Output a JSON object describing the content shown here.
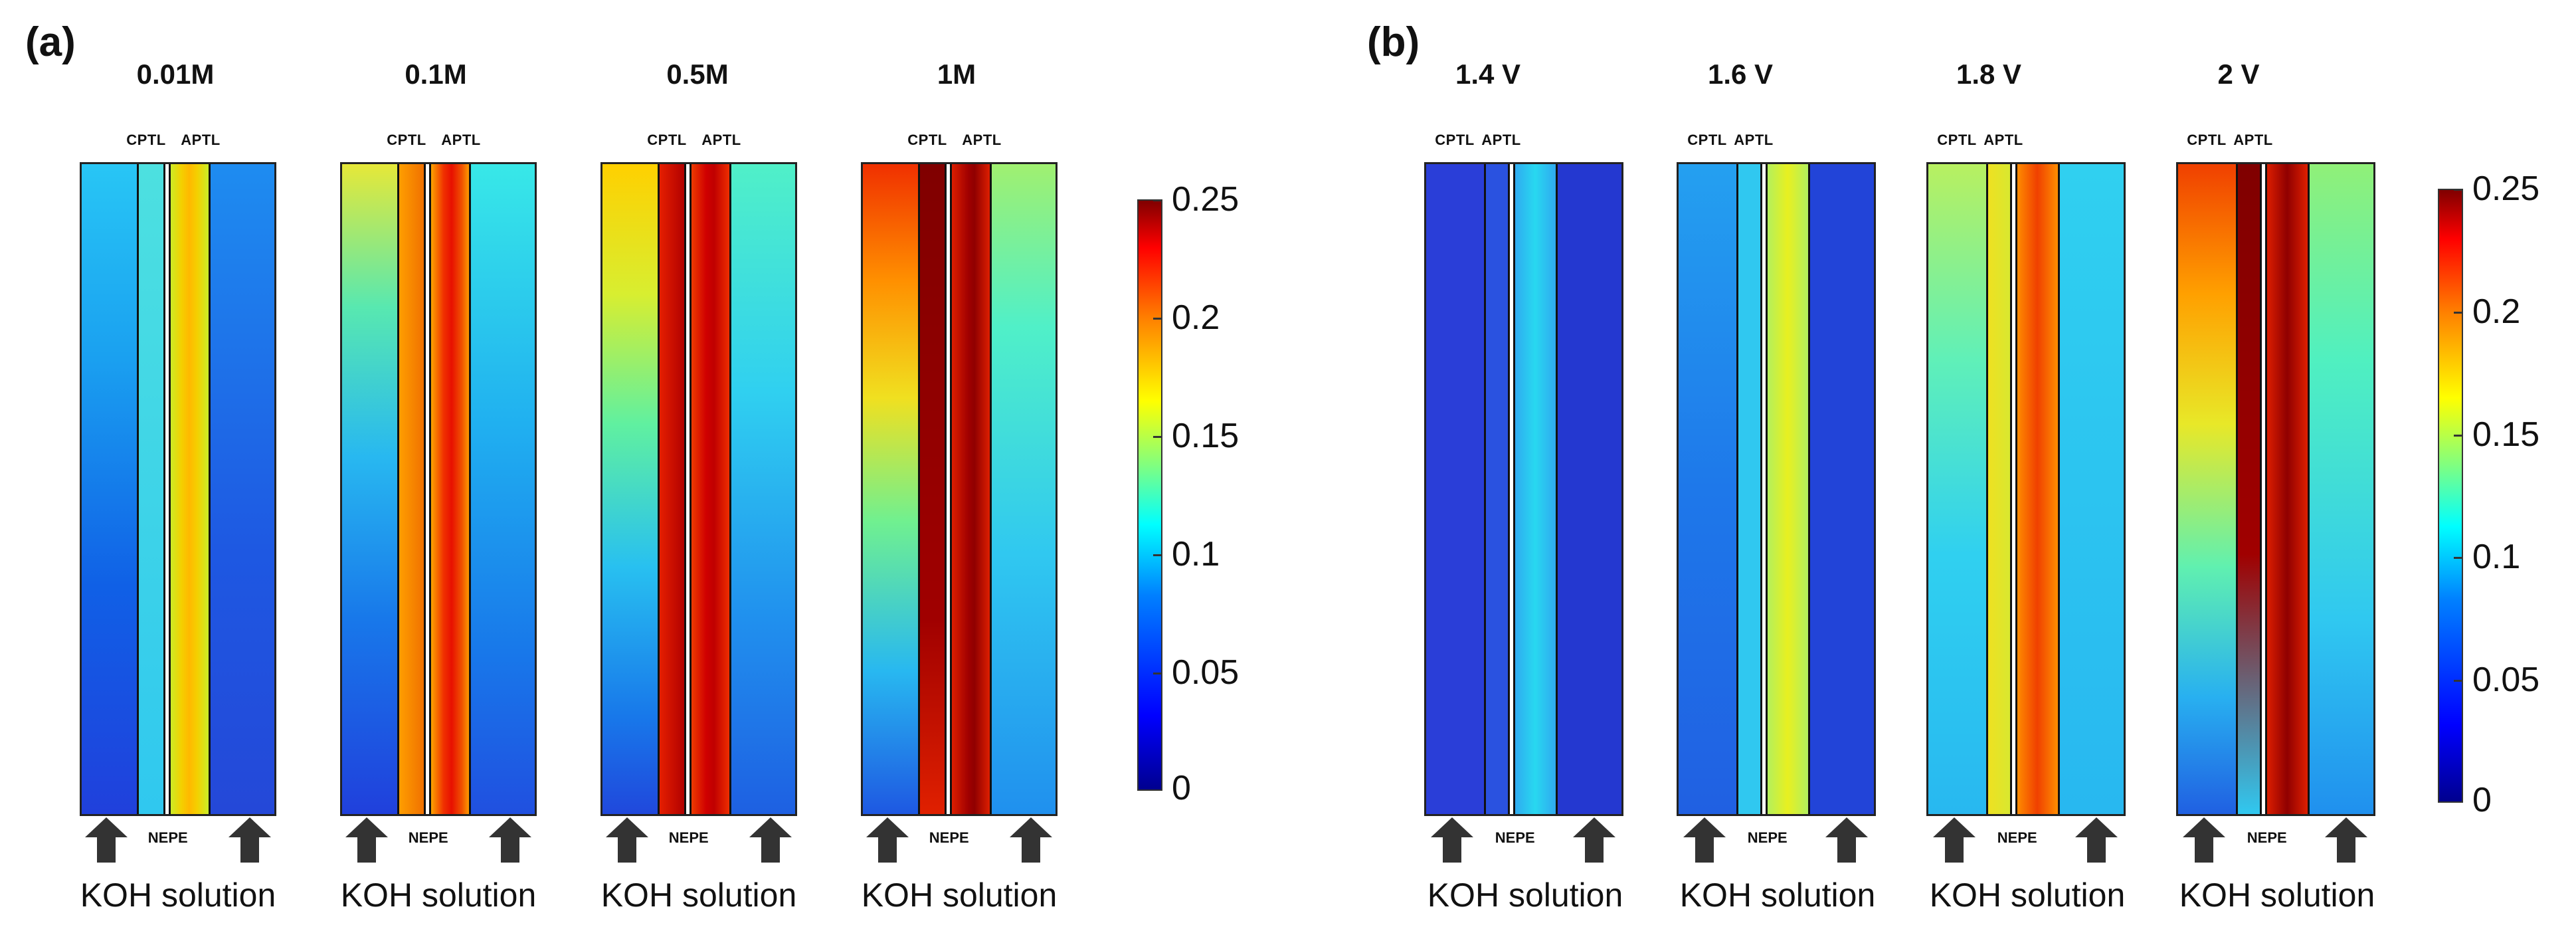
{
  "panels": [
    {
      "label": "(a)",
      "cells": [
        {
          "title": "0.01M",
          "koh": "KOH solution",
          "top_left": "CPTL",
          "top_right": "APTL",
          "bot_left": "NE",
          "bot_right": "PE"
        },
        {
          "title": "0.1M",
          "koh": "KOH solution",
          "top_left": "CPTL",
          "top_right": "APTL",
          "bot_left": "NE",
          "bot_right": "PE"
        },
        {
          "title": "0.5M",
          "koh": "KOH solution",
          "top_left": "CPTL",
          "top_right": "APTL",
          "bot_left": "NE",
          "bot_right": "PE"
        },
        {
          "title": "1M",
          "koh": "KOH solution",
          "top_left": "CPTL",
          "top_right": "APTL",
          "bot_left": "NE",
          "bot_right": "PE"
        }
      ],
      "colorbar_ticks": [
        "0.25",
        "0.2",
        "0.15",
        "0.1",
        "0.05",
        "0"
      ]
    },
    {
      "label": "(b)",
      "cells": [
        {
          "title": "1.4 V",
          "koh": "KOH solution",
          "top_left": "CPTL",
          "top_right": "APTL",
          "bot_left": "NE",
          "bot_right": "PE"
        },
        {
          "title": "1.6 V",
          "koh": "KOH solution",
          "top_left": "CPTL",
          "top_right": "APTL",
          "bot_left": "NE",
          "bot_right": "PE"
        },
        {
          "title": "1.8 V",
          "koh": "KOH solution",
          "top_left": "CPTL",
          "top_right": "APTL",
          "bot_left": "NE",
          "bot_right": "PE"
        },
        {
          "title": "2 V",
          "koh": "KOH solution",
          "top_left": "CPTL",
          "top_right": "APTL",
          "bot_left": "NE",
          "bot_right": "PE"
        }
      ],
      "colorbar_ticks": [
        "0.25",
        "0.2",
        "0.15",
        "0.1",
        "0.05",
        "0"
      ]
    }
  ],
  "colors": {
    "colormap": "jet",
    "arrow": "#333333"
  }
}
